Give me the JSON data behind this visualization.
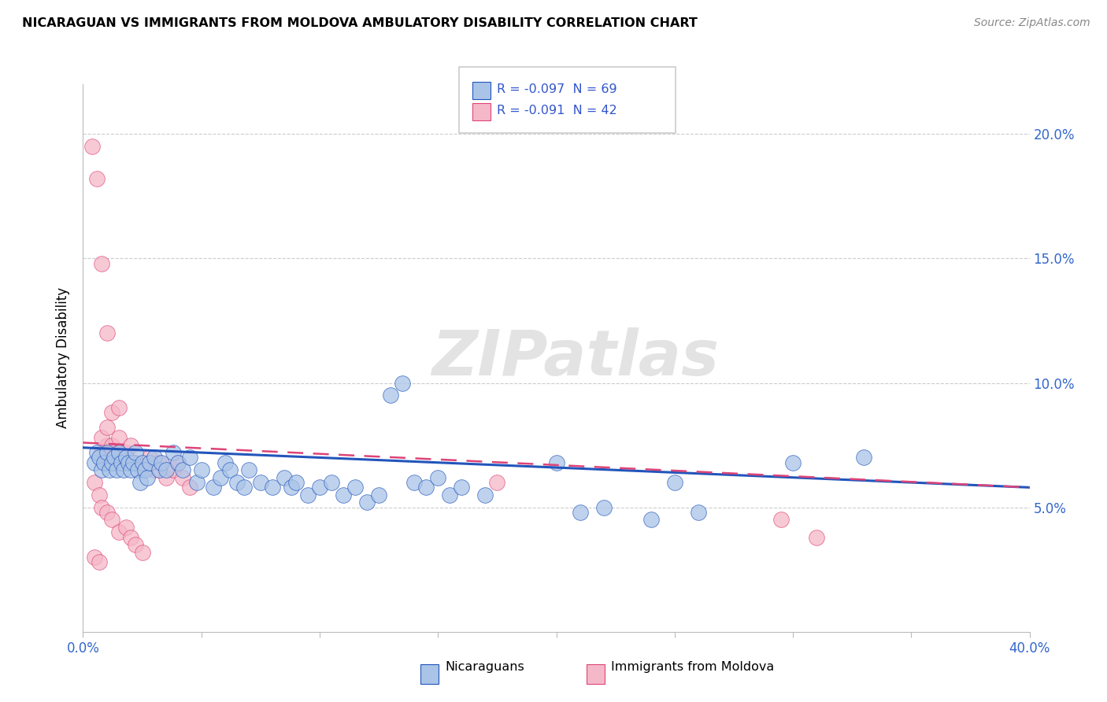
{
  "title": "NICARAGUAN VS IMMIGRANTS FROM MOLDOVA AMBULATORY DISABILITY CORRELATION CHART",
  "source": "Source: ZipAtlas.com",
  "ylabel": "Ambulatory Disability",
  "xlim": [
    0.0,
    0.4
  ],
  "ylim": [
    0.0,
    0.22
  ],
  "blue_color": "#aac4e8",
  "pink_color": "#f5b8c8",
  "trendline_blue": "#2255bb",
  "trendline_pink": "#dd4477",
  "watermark": "ZIPatlas",
  "blue_trend_x": [
    0.0,
    0.4
  ],
  "blue_trend_y": [
    0.074,
    0.058
  ],
  "pink_trend_x": [
    0.0,
    0.4
  ],
  "pink_trend_y": [
    0.076,
    0.058
  ],
  "blue_scatter": [
    [
      0.005,
      0.068
    ],
    [
      0.006,
      0.072
    ],
    [
      0.007,
      0.07
    ],
    [
      0.008,
      0.065
    ],
    [
      0.009,
      0.068
    ],
    [
      0.01,
      0.072
    ],
    [
      0.011,
      0.065
    ],
    [
      0.012,
      0.068
    ],
    [
      0.013,
      0.07
    ],
    [
      0.014,
      0.065
    ],
    [
      0.015,
      0.072
    ],
    [
      0.016,
      0.068
    ],
    [
      0.017,
      0.065
    ],
    [
      0.018,
      0.07
    ],
    [
      0.019,
      0.068
    ],
    [
      0.02,
      0.065
    ],
    [
      0.021,
      0.068
    ],
    [
      0.022,
      0.072
    ],
    [
      0.023,
      0.065
    ],
    [
      0.024,
      0.06
    ],
    [
      0.025,
      0.068
    ],
    [
      0.026,
      0.065
    ],
    [
      0.027,
      0.062
    ],
    [
      0.028,
      0.068
    ],
    [
      0.03,
      0.07
    ],
    [
      0.032,
      0.065
    ],
    [
      0.033,
      0.068
    ],
    [
      0.035,
      0.065
    ],
    [
      0.038,
      0.072
    ],
    [
      0.04,
      0.068
    ],
    [
      0.042,
      0.065
    ],
    [
      0.045,
      0.07
    ],
    [
      0.048,
      0.06
    ],
    [
      0.05,
      0.065
    ],
    [
      0.055,
      0.058
    ],
    [
      0.058,
      0.062
    ],
    [
      0.06,
      0.068
    ],
    [
      0.062,
      0.065
    ],
    [
      0.065,
      0.06
    ],
    [
      0.068,
      0.058
    ],
    [
      0.07,
      0.065
    ],
    [
      0.075,
      0.06
    ],
    [
      0.08,
      0.058
    ],
    [
      0.085,
      0.062
    ],
    [
      0.088,
      0.058
    ],
    [
      0.09,
      0.06
    ],
    [
      0.095,
      0.055
    ],
    [
      0.1,
      0.058
    ],
    [
      0.105,
      0.06
    ],
    [
      0.11,
      0.055
    ],
    [
      0.115,
      0.058
    ],
    [
      0.12,
      0.052
    ],
    [
      0.125,
      0.055
    ],
    [
      0.13,
      0.095
    ],
    [
      0.135,
      0.1
    ],
    [
      0.14,
      0.06
    ],
    [
      0.145,
      0.058
    ],
    [
      0.15,
      0.062
    ],
    [
      0.155,
      0.055
    ],
    [
      0.16,
      0.058
    ],
    [
      0.17,
      0.055
    ],
    [
      0.2,
      0.068
    ],
    [
      0.21,
      0.048
    ],
    [
      0.22,
      0.05
    ],
    [
      0.24,
      0.045
    ],
    [
      0.25,
      0.06
    ],
    [
      0.26,
      0.048
    ],
    [
      0.3,
      0.068
    ],
    [
      0.33,
      0.07
    ]
  ],
  "pink_scatter": [
    [
      0.004,
      0.195
    ],
    [
      0.006,
      0.182
    ],
    [
      0.008,
      0.148
    ],
    [
      0.01,
      0.12
    ],
    [
      0.012,
      0.088
    ],
    [
      0.01,
      0.075
    ],
    [
      0.015,
      0.09
    ],
    [
      0.008,
      0.078
    ],
    [
      0.01,
      0.082
    ],
    [
      0.012,
      0.075
    ],
    [
      0.015,
      0.078
    ],
    [
      0.008,
      0.072
    ],
    [
      0.01,
      0.068
    ],
    [
      0.012,
      0.072
    ],
    [
      0.015,
      0.068
    ],
    [
      0.018,
      0.072
    ],
    [
      0.02,
      0.075
    ],
    [
      0.022,
      0.068
    ],
    [
      0.025,
      0.065
    ],
    [
      0.028,
      0.07
    ],
    [
      0.03,
      0.065
    ],
    [
      0.032,
      0.068
    ],
    [
      0.035,
      0.062
    ],
    [
      0.038,
      0.065
    ],
    [
      0.04,
      0.068
    ],
    [
      0.042,
      0.062
    ],
    [
      0.045,
      0.058
    ],
    [
      0.005,
      0.06
    ],
    [
      0.007,
      0.055
    ],
    [
      0.008,
      0.05
    ],
    [
      0.01,
      0.048
    ],
    [
      0.012,
      0.045
    ],
    [
      0.015,
      0.04
    ],
    [
      0.018,
      0.042
    ],
    [
      0.02,
      0.038
    ],
    [
      0.022,
      0.035
    ],
    [
      0.025,
      0.032
    ],
    [
      0.005,
      0.03
    ],
    [
      0.007,
      0.028
    ],
    [
      0.175,
      0.06
    ],
    [
      0.295,
      0.045
    ],
    [
      0.31,
      0.038
    ]
  ]
}
